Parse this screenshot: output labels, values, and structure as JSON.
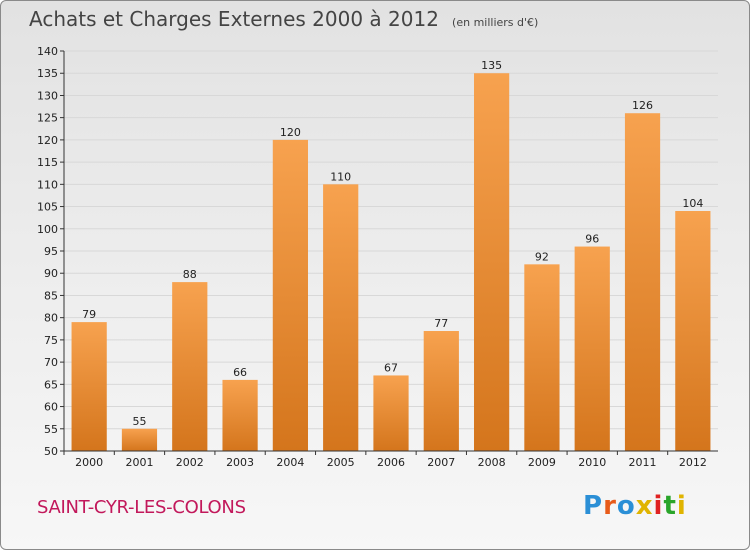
{
  "header": {
    "title": "Achats et Charges Externes 2000 à 2012",
    "subtitle": "(en milliers d'€)"
  },
  "footer": {
    "commune": "SAINT-CYR-LES-COLONS",
    "brand": [
      "P",
      "r",
      "o",
      "x",
      "i",
      "t",
      "i"
    ]
  },
  "colors": {
    "bar_light": "#f7a24f",
    "bar_dark": "#d4751c",
    "axis": "#333333",
    "grid": "#d8d8d8",
    "commune": "#c2185b",
    "brand": [
      "#2b8fd6",
      "#e85b1a",
      "#2b8fd6",
      "#e0b400",
      "#e02222",
      "#2aa52a",
      "#e0b400"
    ]
  },
  "chart_data": {
    "type": "bar",
    "categories": [
      "2000",
      "2001",
      "2002",
      "2003",
      "2004",
      "2005",
      "2006",
      "2007",
      "2008",
      "2009",
      "2010",
      "2011",
      "2012"
    ],
    "values": [
      79,
      55,
      88,
      66,
      120,
      110,
      67,
      77,
      135,
      92,
      96,
      126,
      104
    ],
    "value_labels": [
      "79",
      "55",
      "88",
      "66",
      "120",
      "110",
      "67",
      "77",
      "135",
      "92",
      "96",
      "126",
      "104"
    ],
    "title": "Achats et Charges Externes 2000 à 2012",
    "ylim": [
      50,
      140
    ],
    "yticks": [
      "50",
      "55",
      "60",
      "65",
      "70",
      "75",
      "80",
      "85",
      "90",
      "95",
      "100",
      "105",
      "110",
      "115",
      "120",
      "125",
      "130",
      "135",
      "140"
    ],
    "grid": true
  }
}
